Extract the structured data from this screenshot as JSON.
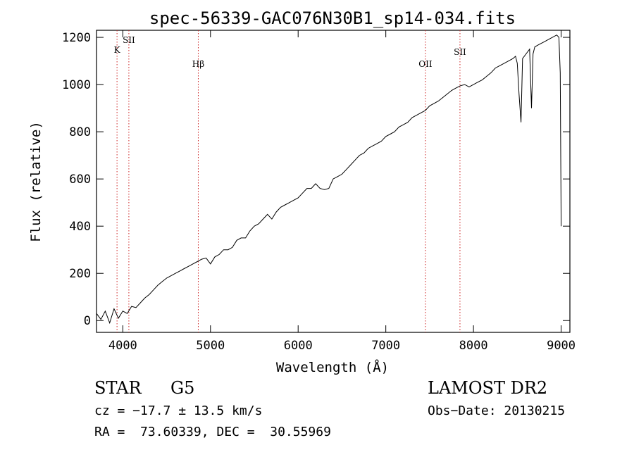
{
  "chart_data": {
    "type": "line",
    "title": "spec-56339-GAC076N30B1_sp14-034.fits",
    "xlabel": "Wavelength (Å)",
    "ylabel": "Flux (relative)",
    "xlim": [
      3700,
      9100
    ],
    "ylim": [
      -50,
      1230
    ],
    "xticks": [
      4000,
      5000,
      6000,
      7000,
      8000,
      9000
    ],
    "yticks": [
      0,
      200,
      400,
      600,
      800,
      1000,
      1200
    ],
    "grid": false,
    "series": [
      {
        "color": "#000000",
        "x": [
          3700,
          3750,
          3800,
          3850,
          3900,
          3950,
          4000,
          4050,
          4100,
          4150,
          4200,
          4250,
          4300,
          4350,
          4400,
          4450,
          4500,
          4550,
          4600,
          4650,
          4700,
          4750,
          4800,
          4850,
          4900,
          4950,
          5000,
          5050,
          5100,
          5150,
          5200,
          5250,
          5300,
          5350,
          5400,
          5450,
          5500,
          5550,
          5600,
          5650,
          5700,
          5750,
          5800,
          5850,
          5900,
          5950,
          6000,
          6050,
          6100,
          6150,
          6200,
          6250,
          6300,
          6350,
          6400,
          6450,
          6500,
          6550,
          6600,
          6650,
          6700,
          6750,
          6800,
          6850,
          6900,
          6950,
          7000,
          7050,
          7100,
          7150,
          7200,
          7250,
          7300,
          7350,
          7400,
          7450,
          7500,
          7550,
          7600,
          7650,
          7700,
          7750,
          7800,
          7850,
          7900,
          7950,
          8000,
          8050,
          8100,
          8150,
          8200,
          8250,
          8300,
          8350,
          8400,
          8450,
          8480,
          8500,
          8520,
          8542,
          8560,
          8600,
          8640,
          8662,
          8680,
          8700,
          8750,
          8800,
          8850,
          8900,
          8950,
          8975,
          8990,
          9000
        ],
        "y": [
          30,
          5,
          40,
          -10,
          50,
          10,
          40,
          30,
          60,
          55,
          75,
          95,
          110,
          130,
          150,
          165,
          180,
          190,
          200,
          210,
          220,
          230,
          240,
          250,
          260,
          265,
          240,
          270,
          280,
          300,
          300,
          310,
          340,
          350,
          350,
          380,
          400,
          410,
          430,
          450,
          430,
          460,
          480,
          490,
          500,
          510,
          520,
          540,
          560,
          560,
          580,
          560,
          555,
          560,
          600,
          610,
          620,
          640,
          660,
          680,
          700,
          710,
          730,
          740,
          750,
          760,
          780,
          790,
          800,
          820,
          830,
          840,
          860,
          870,
          880,
          890,
          910,
          920,
          930,
          945,
          960,
          975,
          985,
          995,
          1000,
          990,
          1000,
          1010,
          1020,
          1035,
          1050,
          1070,
          1080,
          1090,
          1100,
          1110,
          1120,
          1090,
          960,
          840,
          1110,
          1130,
          1150,
          900,
          1130,
          1160,
          1170,
          1180,
          1190,
          1200,
          1210,
          1200,
          1050,
          400
        ]
      }
    ],
    "annotations": [
      {
        "label": "K",
        "x": 3934
      },
      {
        "label": "SII",
        "x": 4069
      },
      {
        "label": "Hβ",
        "x": 4861
      },
      {
        "label": "OII",
        "x": 7452
      },
      {
        "label": "SII",
        "x": 7846
      }
    ]
  },
  "info": {
    "class_label": "STAR",
    "subclass_label": "G5",
    "survey": "LAMOST DR2",
    "cz_text": "cz = −17.7 ± 13.5 km/s",
    "obs_date_text": "Obs−Date: 20130215",
    "radec_text": "RA =  73.60339, DEC =  30.55969"
  },
  "colors": {
    "line_marker": "#cc2222",
    "spectrum": "#000000"
  }
}
